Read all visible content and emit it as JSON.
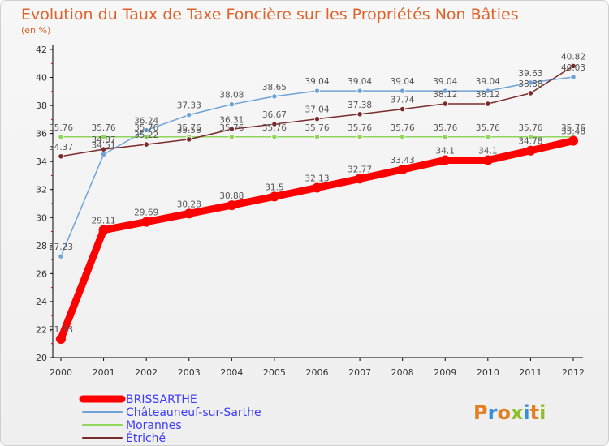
{
  "chart_data": {
    "type": "line",
    "title": "Evolution du Taux de Taxe Foncière sur les Propriétés Non Bâties",
    "subtitle": "(en %)",
    "x": [
      "2000",
      "2001",
      "2002",
      "2003",
      "2004",
      "2005",
      "2006",
      "2007",
      "2008",
      "2009",
      "2010",
      "2011",
      "2012"
    ],
    "ylim": [
      20,
      42
    ],
    "yticks": [
      20,
      22,
      24,
      26,
      28,
      30,
      32,
      34,
      36,
      38,
      40,
      42
    ],
    "grid": false,
    "legend_position": "bottom-left",
    "series": [
      {
        "name": "BRISSARTHE",
        "color": "#ff0000",
        "width": 9,
        "values": [
          21.33,
          29.11,
          29.69,
          30.28,
          30.88,
          31.5,
          32.13,
          32.77,
          33.43,
          34.1,
          34.1,
          34.78,
          35.48
        ],
        "labels": [
          "21.33",
          "29.11",
          "29.69",
          "30.28",
          "30.88",
          "31.5",
          "32.13",
          "32.77",
          "33.43",
          "34.1",
          "34.1",
          "34.78",
          "35.48"
        ]
      },
      {
        "name": "Châteauneuf-sur-Sarthe",
        "color": "#6fa3d6",
        "width": 1.5,
        "values": [
          27.23,
          34.51,
          36.24,
          37.33,
          38.08,
          38.65,
          39.04,
          39.04,
          39.04,
          39.04,
          39.04,
          39.63,
          40.03
        ],
        "labels": [
          "27.23",
          "34.51",
          "36.24",
          "37.33",
          "38.08",
          "38.65",
          "39.04",
          "39.04",
          "39.04",
          "39.04",
          "39.04",
          "39.63",
          "40.03"
        ]
      },
      {
        "name": "Morannes",
        "color": "#8fd65a",
        "width": 1.5,
        "values": [
          35.76,
          35.76,
          35.76,
          35.76,
          35.76,
          35.76,
          35.76,
          35.76,
          35.76,
          35.76,
          35.76,
          35.76,
          35.76
        ],
        "labels": [
          "35.76",
          "35.76",
          "35.76",
          "35.76",
          "35.76",
          "35.76",
          "35.76",
          "35.76",
          "35.76",
          "35.76",
          "35.76",
          "35.76",
          "35.76"
        ]
      },
      {
        "name": "Étriché",
        "color": "#7a2b2b",
        "width": 1.5,
        "values": [
          34.37,
          34.87,
          35.22,
          35.58,
          36.31,
          36.67,
          37.04,
          37.38,
          37.74,
          38.12,
          38.12,
          38.88,
          40.82
        ],
        "labels": [
          "34.37",
          "34.87",
          "35.22",
          "35.58",
          "36.31",
          "36.67",
          "37.04",
          "37.38",
          "37.74",
          "38.12",
          "38.12",
          "38.88",
          "40.82"
        ]
      }
    ]
  },
  "logo": {
    "text": "Proxiti"
  }
}
